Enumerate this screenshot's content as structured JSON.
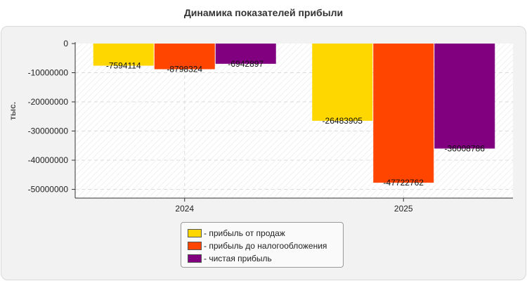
{
  "title": "Динамика показателей прибыли",
  "chart_data": {
    "type": "bar",
    "title": "Динамика показателей прибыли",
    "ylabel": "тыс.",
    "xlabel": "",
    "categories": [
      "2024",
      "2025"
    ],
    "series": [
      {
        "name": "прибыль от продаж",
        "color": "#FFD700",
        "values": [
          -7594114,
          -26483905
        ]
      },
      {
        "name": "прибыль до налогообложения",
        "color": "#FF4500",
        "values": [
          -8798324,
          -47722762
        ]
      },
      {
        "name": "чистая прибыль",
        "color": "#800080",
        "values": [
          -6942897,
          -36008786
        ]
      }
    ],
    "yticks": [
      0,
      -10000000,
      -20000000,
      -30000000,
      -40000000,
      -50000000
    ],
    "ylim": [
      -53000000,
      0
    ],
    "grid": true,
    "legend_position": "bottom-center"
  },
  "legend": {
    "items": [
      {
        "label": "- прибыль от продаж",
        "color": "#FFD700"
      },
      {
        "label": "- прибыль до налогообложения",
        "color": "#FF4500"
      },
      {
        "label": "- чистая прибыль",
        "color": "#800080"
      }
    ]
  }
}
